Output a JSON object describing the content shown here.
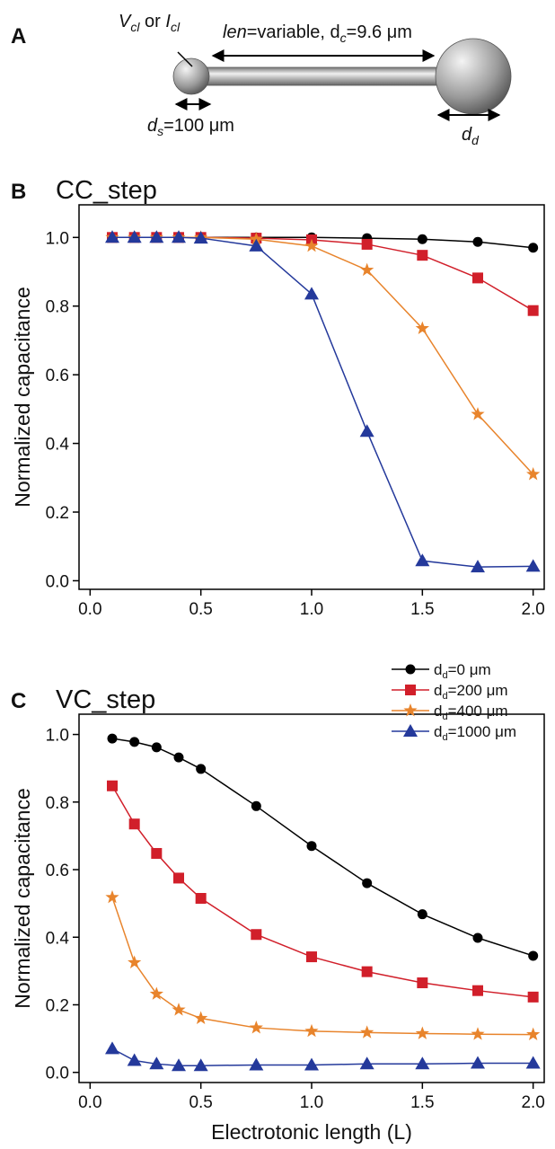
{
  "panel_labels": [
    "A",
    "B",
    "C"
  ],
  "diagram": {
    "clamp_label": [
      "V",
      "cl",
      " or ",
      "I",
      "cl"
    ],
    "cable_label": [
      "len",
      "=variable, d",
      "c",
      "=9.6 μm"
    ],
    "soma_label": [
      "d",
      "s",
      "=100 μm"
    ],
    "dendrite_label": [
      "d",
      "d"
    ]
  },
  "chart_data": [
    {
      "type": "line",
      "title": "CC_step",
      "y_label": "Normalized capacitance",
      "x": [
        0.1,
        0.2,
        0.3,
        0.4,
        0.5,
        0.75,
        1.0,
        1.25,
        1.5,
        1.75,
        2.0
      ],
      "series": [
        {
          "name": "dd=0 μm",
          "color": "#000000",
          "marker": "circle",
          "values": [
            1,
            1,
            1,
            1,
            1,
            1,
            1,
            0.998,
            0.995,
            0.987,
            0.97
          ]
        },
        {
          "name": "dd=200 μm",
          "color": "#d11f2a",
          "marker": "square",
          "values": [
            1,
            1,
            1,
            1,
            1,
            0.998,
            0.993,
            0.98,
            0.948,
            0.882,
            0.787
          ]
        },
        {
          "name": "dd=400 μm",
          "color": "#e8842c",
          "marker": "star",
          "values": [
            1,
            1,
            1,
            1,
            1,
            0.995,
            0.975,
            0.905,
            0.735,
            0.485,
            0.31
          ]
        },
        {
          "name": "dd=1000 μm",
          "color": "#24399b",
          "marker": "triangle",
          "values": [
            1,
            1,
            1,
            1,
            0.998,
            0.975,
            0.835,
            0.435,
            0.058,
            0.04,
            0.042
          ]
        }
      ],
      "xlim": [
        -0.05,
        2.05
      ],
      "ylim": [
        -0.025,
        1.095
      ],
      "xticks": [
        {
          "value": 0,
          "label": "0.0"
        },
        {
          "value": 0.5,
          "label": "0.5"
        },
        {
          "value": 1,
          "label": "1.0"
        },
        {
          "value": 1.5,
          "label": "1.5"
        },
        {
          "value": 2,
          "label": "2.0"
        }
      ],
      "yticks": [
        {
          "value": 0,
          "label": "0.0"
        },
        {
          "value": 0.2,
          "label": "0.2"
        },
        {
          "value": 0.4,
          "label": "0.4"
        },
        {
          "value": 0.6,
          "label": "0.6"
        },
        {
          "value": 0.8,
          "label": "0.8"
        },
        {
          "value": 1,
          "label": "1.0"
        }
      ],
      "grid": false
    },
    {
      "type": "line",
      "title": "VC_step",
      "x_label": "Electrotonic length (L)",
      "y_label": "Normalized capacitance",
      "x": [
        0.1,
        0.2,
        0.3,
        0.4,
        0.5,
        0.75,
        1.0,
        1.25,
        1.5,
        1.75,
        2.0
      ],
      "series": [
        {
          "name": "dd=0 μm",
          "color": "#000000",
          "marker": "circle",
          "values": [
            0.988,
            0.978,
            0.962,
            0.932,
            0.898,
            0.788,
            0.67,
            0.56,
            0.468,
            0.398,
            0.345
          ]
        },
        {
          "name": "dd=200 μm",
          "color": "#d11f2a",
          "marker": "square",
          "values": [
            0.848,
            0.735,
            0.648,
            0.575,
            0.515,
            0.408,
            0.342,
            0.298,
            0.265,
            0.242,
            0.223
          ]
        },
        {
          "name": "dd=400 μm",
          "color": "#e8842c",
          "marker": "star",
          "values": [
            0.518,
            0.325,
            0.232,
            0.185,
            0.16,
            0.132,
            0.122,
            0.118,
            0.115,
            0.113,
            0.112
          ]
        },
        {
          "name": "dd=1000 μm",
          "color": "#24399b",
          "marker": "triangle",
          "values": [
            0.07,
            0.035,
            0.025,
            0.02,
            0.02,
            0.022,
            0.022,
            0.025,
            0.025,
            0.027,
            0.027
          ]
        }
      ],
      "xlim": [
        -0.05,
        2.05
      ],
      "ylim": [
        -0.03,
        1.06
      ],
      "xticks": [
        {
          "value": 0,
          "label": "0.0"
        },
        {
          "value": 0.5,
          "label": "0.5"
        },
        {
          "value": 1,
          "label": "1.0"
        },
        {
          "value": 1.5,
          "label": "1.5"
        },
        {
          "value": 2,
          "label": "2.0"
        }
      ],
      "yticks": [
        {
          "value": 0,
          "label": "0.0"
        },
        {
          "value": 0.2,
          "label": "0.2"
        },
        {
          "value": 0.4,
          "label": "0.4"
        },
        {
          "value": 0.6,
          "label": "0.6"
        },
        {
          "value": 0.8,
          "label": "0.8"
        },
        {
          "value": 1,
          "label": "1.0"
        }
      ],
      "grid": false,
      "legend": "upper right"
    }
  ]
}
